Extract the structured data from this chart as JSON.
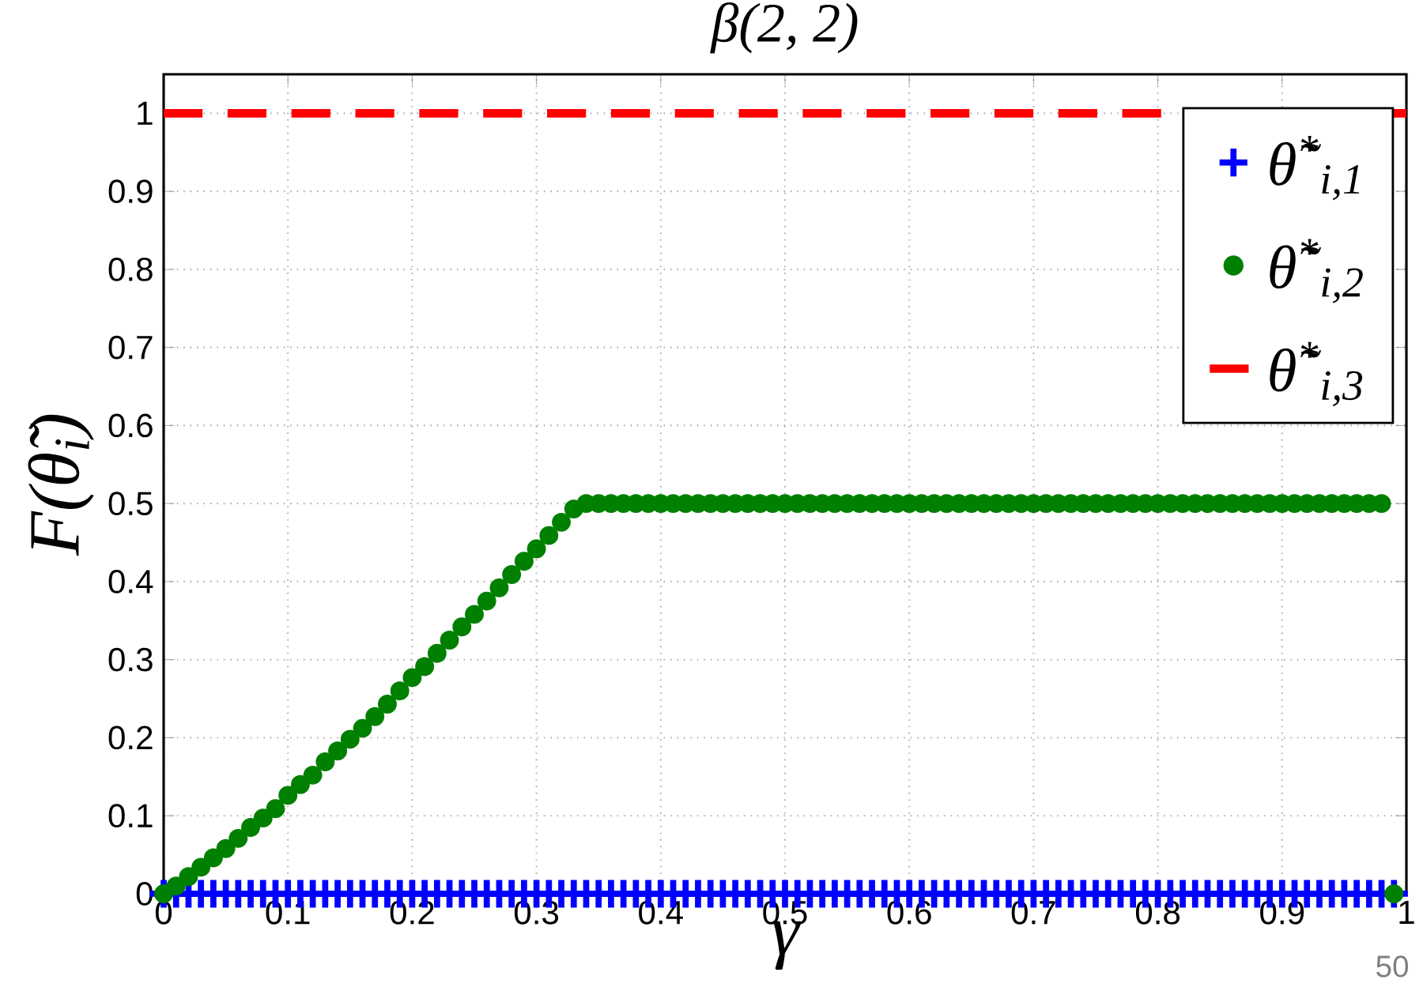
{
  "chart_data": {
    "type": "scatter",
    "title": "β(2, 2)",
    "xlabel": "γ",
    "ylabel": "F(θ̃$_{i}$)",
    "xlim": [
      0,
      1
    ],
    "ylim": [
      0,
      1.05
    ],
    "xticks": [
      0,
      0.1,
      0.2,
      0.3,
      0.4,
      0.5,
      0.6,
      0.7,
      0.8,
      0.9,
      1
    ],
    "yticks": [
      0,
      0.1,
      0.2,
      0.3,
      0.4,
      0.5,
      0.6,
      0.7,
      0.8,
      0.9,
      1
    ],
    "grid": true,
    "legend": "top right",
    "annotations": [
      "50"
    ],
    "series": [
      {
        "name": "θ̃$^{*}$$_{i,1}$",
        "marker": "cross",
        "color": "#0000ff",
        "x": [
          0,
          0.01,
          0.02,
          0.03,
          0.04,
          0.05,
          0.06,
          0.07,
          0.08,
          0.09,
          0.1,
          0.11,
          0.12,
          0.13,
          0.14,
          0.15,
          0.16,
          0.17,
          0.18,
          0.19,
          0.2,
          0.21,
          0.22,
          0.23,
          0.24,
          0.25,
          0.26,
          0.27,
          0.28,
          0.29,
          0.3,
          0.31,
          0.32,
          0.33,
          0.34,
          0.35,
          0.36,
          0.37,
          0.38,
          0.39,
          0.4,
          0.41,
          0.42,
          0.43,
          0.44,
          0.45,
          0.46,
          0.47,
          0.48,
          0.49,
          0.5,
          0.51,
          0.52,
          0.53,
          0.54,
          0.55,
          0.56,
          0.57,
          0.58,
          0.59,
          0.6,
          0.61,
          0.62,
          0.63,
          0.64,
          0.65,
          0.66,
          0.67,
          0.68,
          0.69,
          0.7,
          0.71,
          0.72,
          0.73,
          0.74,
          0.75,
          0.76,
          0.77,
          0.78,
          0.79,
          0.8,
          0.81,
          0.82,
          0.83,
          0.84,
          0.85,
          0.86,
          0.87,
          0.88,
          0.89,
          0.9,
          0.91,
          0.92,
          0.93,
          0.94,
          0.95,
          0.96,
          0.97,
          0.98,
          0.99
        ],
        "values": [
          0,
          0,
          0,
          0,
          0,
          0,
          0,
          0,
          0,
          0,
          0,
          0,
          0,
          0,
          0,
          0,
          0,
          0,
          0,
          0,
          0,
          0,
          0,
          0,
          0,
          0,
          0,
          0,
          0,
          0,
          0,
          0,
          0,
          0,
          0,
          0,
          0,
          0,
          0,
          0,
          0,
          0,
          0,
          0,
          0,
          0,
          0,
          0,
          0,
          0,
          0,
          0,
          0,
          0,
          0,
          0,
          0,
          0,
          0,
          0,
          0,
          0,
          0,
          0,
          0,
          0,
          0,
          0,
          0,
          0,
          0,
          0,
          0,
          0,
          0,
          0,
          0,
          0,
          0,
          0,
          0,
          0,
          0,
          0,
          0,
          0,
          0,
          0,
          0,
          0,
          0,
          0,
          0,
          0,
          0,
          0,
          0,
          0,
          0,
          0
        ]
      },
      {
        "name": "θ̃$^{*}$$_{i,2}$",
        "marker": "circle",
        "color": "#008000",
        "x": [
          0,
          0.01,
          0.02,
          0.03,
          0.04,
          0.05,
          0.06,
          0.07,
          0.08,
          0.09,
          0.1,
          0.11,
          0.12,
          0.13,
          0.14,
          0.15,
          0.16,
          0.17,
          0.18,
          0.19,
          0.2,
          0.21,
          0.22,
          0.23,
          0.24,
          0.25,
          0.26,
          0.27,
          0.28,
          0.29,
          0.3,
          0.31,
          0.32,
          0.33,
          0.34,
          0.35,
          0.36,
          0.37,
          0.38,
          0.39,
          0.4,
          0.41,
          0.42,
          0.43,
          0.44,
          0.45,
          0.46,
          0.47,
          0.48,
          0.49,
          0.5,
          0.51,
          0.52,
          0.53,
          0.54,
          0.55,
          0.56,
          0.57,
          0.58,
          0.59,
          0.6,
          0.61,
          0.62,
          0.63,
          0.64,
          0.65,
          0.66,
          0.67,
          0.68,
          0.69,
          0.7,
          0.71,
          0.72,
          0.73,
          0.74,
          0.75,
          0.76,
          0.77,
          0.78,
          0.79,
          0.8,
          0.81,
          0.82,
          0.83,
          0.84,
          0.85,
          0.86,
          0.87,
          0.88,
          0.89,
          0.9,
          0.91,
          0.92,
          0.93,
          0.94,
          0.95,
          0.96,
          0.97,
          0.98,
          0.99
        ],
        "values": [
          0,
          0.01,
          0.022,
          0.034,
          0.046,
          0.058,
          0.071,
          0.085,
          0.097,
          0.109,
          0.126,
          0.14,
          0.152,
          0.169,
          0.183,
          0.198,
          0.212,
          0.227,
          0.243,
          0.26,
          0.277,
          0.291,
          0.308,
          0.325,
          0.342,
          0.358,
          0.375,
          0.392,
          0.409,
          0.426,
          0.442,
          0.459,
          0.476,
          0.493,
          0.5,
          0.5,
          0.5,
          0.5,
          0.5,
          0.5,
          0.5,
          0.5,
          0.5,
          0.5,
          0.5,
          0.5,
          0.5,
          0.5,
          0.5,
          0.5,
          0.5,
          0.5,
          0.5,
          0.5,
          0.5,
          0.5,
          0.5,
          0.5,
          0.5,
          0.5,
          0.5,
          0.5,
          0.5,
          0.5,
          0.5,
          0.5,
          0.5,
          0.5,
          0.5,
          0.5,
          0.5,
          0.5,
          0.5,
          0.5,
          0.5,
          0.5,
          0.5,
          0.5,
          0.5,
          0.5,
          0.5,
          0.5,
          0.5,
          0.5,
          0.5,
          0.5,
          0.5,
          0.5,
          0.5,
          0.5,
          0.5,
          0.5,
          0.5,
          0.5,
          0.5,
          0.5,
          0.5,
          0.5,
          0.5,
          0
        ]
      },
      {
        "name": "θ̃$^{*}$$_{i,3}$",
        "type": "line",
        "marker": "none",
        "line_style": "dashed",
        "color": "#ff0000",
        "x": [
          0,
          1
        ],
        "values": [
          1,
          1
        ]
      }
    ]
  }
}
